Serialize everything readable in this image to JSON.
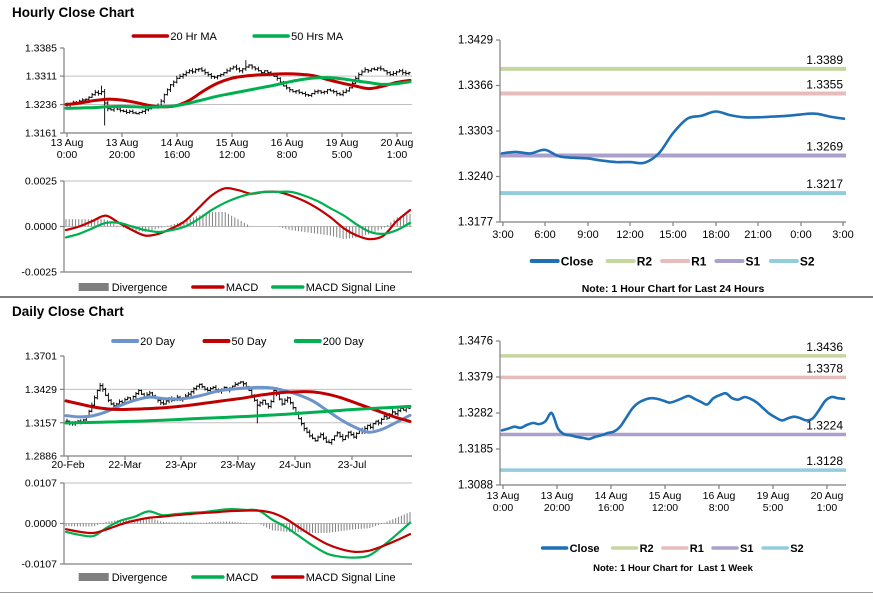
{
  "sections": {
    "hourly": {
      "title": "Hourly Close Chart",
      "note": "Note: 1 Hour Chart for Last 24 Hours"
    },
    "daily": {
      "title": "Daily Close Chart",
      "note": "Note: 1 Hour Chart for  Last 1 Week"
    }
  },
  "colors": {
    "ma_red": "#C00000",
    "ma_green": "#00B050",
    "ma_blue": "#6C94CB",
    "close_blue": "#1F6FB5",
    "r2": "#C5D79E",
    "r1": "#E8BCBA",
    "s1": "#ABA0CC",
    "s2": "#92CDDC",
    "divergence": "#7F7F7F",
    "grid": "#BFBFBF",
    "axis": "#808080"
  },
  "chart_data": [
    {
      "id": "hourly-candlestick",
      "type": "candlestick",
      "title": "Hourly Close Chart",
      "ylim": [
        1.3161,
        1.3385
      ],
      "yticks": [
        1.3385,
        1.3311,
        1.3236,
        1.3161
      ],
      "xticklabels": [
        [
          "13 Aug",
          "0:00"
        ],
        [
          "13 Aug",
          "20:00"
        ],
        [
          "14 Aug",
          "16:00"
        ],
        [
          "15 Aug",
          "12:00"
        ],
        [
          "16 Aug",
          "8:00"
        ],
        [
          "19 Aug",
          "5:00"
        ],
        [
          "20 Aug",
          "1:00"
        ]
      ],
      "closes": [
        1.3235,
        1.3238,
        1.3242,
        1.324,
        1.3245,
        1.3248,
        1.325,
        1.3255,
        1.3262,
        1.3268,
        1.3265,
        1.327,
        1.324,
        1.3225,
        1.3222,
        1.3228,
        1.3224,
        1.322,
        1.3218,
        1.3215,
        1.3218,
        1.3214,
        1.3212,
        1.3215,
        1.3218,
        1.3222,
        1.3225,
        1.323,
        1.3228,
        1.3232,
        1.3245,
        1.3262,
        1.3275,
        1.3288,
        1.3295,
        1.3305,
        1.331,
        1.3315,
        1.332,
        1.3325,
        1.3322,
        1.3328,
        1.333,
        1.3325,
        1.332,
        1.3315,
        1.331,
        1.3308,
        1.3312,
        1.3315,
        1.332,
        1.3325,
        1.333,
        1.3335,
        1.333,
        1.3325,
        1.333,
        1.3335,
        1.334,
        1.3335,
        1.333,
        1.3325,
        1.332,
        1.3325,
        1.332,
        1.3315,
        1.331,
        1.3305,
        1.3295,
        1.3285,
        1.328,
        1.3275,
        1.327,
        1.3272,
        1.3268,
        1.3265,
        1.3262,
        1.326,
        1.3265,
        1.327,
        1.3272,
        1.3268,
        1.327,
        1.3275,
        1.3272,
        1.327,
        1.3265,
        1.3262,
        1.3268,
        1.3272,
        1.328,
        1.3292,
        1.3305,
        1.3315,
        1.3322,
        1.3328,
        1.3325,
        1.333,
        1.3328,
        1.3332,
        1.333,
        1.3325,
        1.332,
        1.3315,
        1.3318,
        1.3322,
        1.3325,
        1.332,
        1.3318,
        1.332
      ],
      "wick": 0.0007,
      "spikes": [
        {
          "i": 12,
          "low": 1.3181
        },
        {
          "i": 11,
          "high": 1.3286
        },
        {
          "i": 57,
          "high": 1.3353
        }
      ],
      "series": [
        {
          "name": "20 Hr MA",
          "color": "#C00000",
          "values": [
            1.3236,
            1.324,
            1.3246,
            1.325,
            1.3248,
            1.3242,
            1.3234,
            1.323,
            1.3233,
            1.3248,
            1.3272,
            1.3292,
            1.3305,
            1.3311,
            1.3314,
            1.3316,
            1.3317,
            1.3316,
            1.3312,
            1.3302,
            1.3293,
            1.3285,
            1.3278,
            1.3284,
            1.3294,
            1.33
          ]
        },
        {
          "name": "50 Hrs MA",
          "color": "#00B050",
          "values": [
            1.3226,
            1.3227,
            1.3228,
            1.323,
            1.3231,
            1.323,
            1.3229,
            1.323,
            1.3233,
            1.324,
            1.3249,
            1.3258,
            1.3265,
            1.3272,
            1.3279,
            1.3286,
            1.3294,
            1.3301,
            1.3306,
            1.3307,
            1.3304,
            1.3299,
            1.3294,
            1.3289,
            1.3291,
            1.3296
          ]
        }
      ],
      "legend": [
        {
          "label": "20 Hr MA",
          "color": "#C00000"
        },
        {
          "label": "50 Hrs MA",
          "color": "#00B050"
        }
      ]
    },
    {
      "id": "hourly-macd",
      "type": "macd",
      "ylim": [
        -0.0025,
        0.0025
      ],
      "yticks": [
        0.0025,
        0.0,
        -0.0025
      ],
      "series": [
        {
          "name": "MACD",
          "color": "#C00000",
          "values": [
            -0.0002,
            0.0,
            0.0003,
            0.0006,
            0.0002,
            -0.0002,
            -0.0005,
            -0.0004,
            -0.0001,
            0.0003,
            0.001,
            0.0017,
            0.0021,
            0.002,
            0.0018,
            0.0019,
            0.0019,
            0.0017,
            0.0014,
            0.001,
            0.0005,
            -0.0001,
            -0.0005,
            -0.0007,
            -0.0005,
            0.0003,
            0.0009
          ]
        },
        {
          "name": "MACD Signal Line",
          "color": "#00B050",
          "values": [
            -0.0006,
            -0.0004,
            -0.0001,
            0.0002,
            0.0002,
            0.0,
            -0.0002,
            -0.0003,
            -0.0002,
            0.0,
            0.0004,
            0.0009,
            0.0013,
            0.0016,
            0.0018,
            0.0019,
            0.0019,
            0.0019,
            0.0017,
            0.0014,
            0.001,
            0.0006,
            0.0001,
            -0.0003,
            -0.0004,
            -0.0002,
            0.0002
          ]
        }
      ],
      "divergence": {
        "color": "#808080",
        "bars": 108
      },
      "legend": [
        {
          "label": "Divergence",
          "color": "#7F7F7F",
          "shape": "box"
        },
        {
          "label": "MACD",
          "color": "#C00000"
        },
        {
          "label": "MACD Signal Line",
          "color": "#00B050"
        }
      ]
    },
    {
      "id": "hourly-close-pivots",
      "type": "line",
      "ylim": [
        1.3177,
        1.3429
      ],
      "yticks": [
        1.3429,
        1.3366,
        1.3303,
        1.324,
        1.3177
      ],
      "xticklabels": [
        "3:00",
        "6:00",
        "9:00",
        "12:00",
        "15:00",
        "18:00",
        "21:00",
        "0:00",
        "3:00"
      ],
      "series": [
        {
          "name": "Close",
          "color": "#1F6FB5",
          "values": [
            1.3272,
            1.3274,
            1.3272,
            1.3277,
            1.3268,
            1.3266,
            1.3265,
            1.3262,
            1.326,
            1.326,
            1.3259,
            1.3272,
            1.33,
            1.332,
            1.3324,
            1.333,
            1.3325,
            1.3322,
            1.3322,
            1.3323,
            1.3324,
            1.3326,
            1.3327,
            1.3323,
            1.332
          ]
        }
      ],
      "levels": [
        {
          "name": "R2",
          "label": "1.3389",
          "value": 1.3389,
          "color": "#C5D79E"
        },
        {
          "name": "R1",
          "label": "1.3355",
          "value": 1.3355,
          "color": "#E8BCBA"
        },
        {
          "name": "S1",
          "label": "1.3269",
          "value": 1.3269,
          "color": "#ABA0CC"
        },
        {
          "name": "S2",
          "label": "1.3217",
          "value": 1.3217,
          "color": "#92CDDC"
        }
      ],
      "legend": [
        {
          "label": "Close",
          "color": "#1F6FB5"
        },
        {
          "label": "R2",
          "color": "#C5D79E"
        },
        {
          "label": "R1",
          "color": "#E8BCBA"
        },
        {
          "label": "S1",
          "color": "#ABA0CC"
        },
        {
          "label": "S2",
          "color": "#92CDDC"
        }
      ],
      "note": "Note: 1 Hour Chart for Last 24 Hours"
    },
    {
      "id": "daily-candlestick",
      "type": "candlestick",
      "title": "Daily Close Chart",
      "ylim": [
        1.2886,
        1.3701
      ],
      "yticks": [
        1.3701,
        1.3429,
        1.3157,
        1.2886
      ],
      "xticklabels": [
        "20-Feb",
        "22-Mar",
        "23-Apr",
        "23-May",
        "24-Jun",
        "23-Jul"
      ],
      "closes": [
        1.317,
        1.3155,
        1.3148,
        1.3162,
        1.317,
        1.3165,
        1.318,
        1.321,
        1.325,
        1.33,
        1.336,
        1.342,
        1.346,
        1.343,
        1.338,
        1.334,
        1.331,
        1.3295,
        1.331,
        1.333,
        1.332,
        1.3345,
        1.336,
        1.334,
        1.337,
        1.3395,
        1.342,
        1.339,
        1.3365,
        1.3385,
        1.34,
        1.3375,
        1.3355,
        1.334,
        1.332,
        1.331,
        1.3335,
        1.3355,
        1.334,
        1.335,
        1.3365,
        1.3345,
        1.336,
        1.3375,
        1.339,
        1.341,
        1.3435,
        1.3455,
        1.347,
        1.345,
        1.343,
        1.342,
        1.3435,
        1.3445,
        1.3425,
        1.3415,
        1.343,
        1.3445,
        1.3425,
        1.344,
        1.3455,
        1.347,
        1.348,
        1.349,
        1.3475,
        1.345,
        1.342,
        1.338,
        1.334,
        1.33,
        1.332,
        1.334,
        1.331,
        1.329,
        1.333,
        1.342,
        1.339,
        1.335,
        1.331,
        1.334,
        1.336,
        1.332,
        1.328,
        1.324,
        1.319,
        1.315,
        1.311,
        1.308,
        1.305,
        1.303,
        1.301,
        1.304,
        1.306,
        1.303,
        1.3,
        1.2995,
        1.302,
        1.305,
        1.3075,
        1.3045,
        1.302,
        1.305,
        1.308,
        1.306,
        1.304,
        1.307,
        1.31,
        1.3085,
        1.311,
        1.3135,
        1.312,
        1.315,
        1.317,
        1.3155,
        1.3185,
        1.321,
        1.3195,
        1.3225,
        1.3245,
        1.323,
        1.3255,
        1.3275,
        1.326,
        1.328,
        1.3275
      ],
      "wick": 0.0022,
      "spikes": [
        {
          "i": 12,
          "high": 1.3472
        },
        {
          "i": 63,
          "high": 1.3497
        },
        {
          "i": 69,
          "low": 1.3152
        },
        {
          "i": 26,
          "high": 1.343
        }
      ],
      "series": [
        {
          "name": "20 Day",
          "color": "#6C94CB",
          "values": [
            1.3215,
            1.3205,
            1.3215,
            1.325,
            1.33,
            1.334,
            1.3365,
            1.3355,
            1.335,
            1.336,
            1.3385,
            1.3415,
            1.343,
            1.344,
            1.3445,
            1.344,
            1.3415,
            1.338,
            1.333,
            1.3255,
            1.318,
            1.312,
            1.308,
            1.3105,
            1.316,
            1.3218
          ]
        },
        {
          "name": "50 Day",
          "color": "#C00000",
          "values": [
            1.3335,
            1.331,
            1.3285,
            1.327,
            1.3265,
            1.3268,
            1.3272,
            1.3278,
            1.3288,
            1.33,
            1.3315,
            1.333,
            1.3345,
            1.336,
            1.338,
            1.3395,
            1.3405,
            1.341,
            1.3408,
            1.339,
            1.336,
            1.332,
            1.328,
            1.324,
            1.32,
            1.3168
          ]
        },
        {
          "name": "200 Day",
          "color": "#00B050",
          "values": [
            1.3155,
            1.3158,
            1.316,
            1.3163,
            1.3166,
            1.317,
            1.3174,
            1.3178,
            1.3183,
            1.3188,
            1.3193,
            1.3198,
            1.3203,
            1.3208,
            1.3214,
            1.322,
            1.3227,
            1.3234,
            1.3242,
            1.325,
            1.3258,
            1.3266,
            1.3272,
            1.3278,
            1.3284,
            1.329
          ]
        }
      ],
      "legend": [
        {
          "label": "20 Day",
          "color": "#6C94CB"
        },
        {
          "label": "50 Day",
          "color": "#C00000"
        },
        {
          "label": "200 Day",
          "color": "#00B050"
        }
      ]
    },
    {
      "id": "daily-macd",
      "type": "macd",
      "ylim": [
        -0.0107,
        0.0107
      ],
      "yticks": [
        0.0107,
        0.0,
        -0.0107
      ],
      "series": [
        {
          "name": "MACD",
          "color": "#00B050",
          "values": [
            -0.0022,
            -0.003,
            -0.0033,
            -0.001,
            0.0008,
            0.0018,
            0.0032,
            0.0022,
            0.0025,
            0.0028,
            0.003,
            0.0035,
            0.0038,
            0.0036,
            0.0034,
            0.001,
            -0.001,
            -0.0035,
            -0.006,
            -0.008,
            -0.0088,
            -0.009,
            -0.0085,
            -0.006,
            -0.003,
            0.0002
          ]
        },
        {
          "name": "MACD Signal Line",
          "color": "#C00000",
          "values": [
            -0.0015,
            -0.0022,
            -0.0025,
            -0.0015,
            -0.0002,
            0.0008,
            0.0015,
            0.0018,
            0.0022,
            0.0025,
            0.0028,
            0.003,
            0.0033,
            0.0034,
            0.0034,
            0.0028,
            0.0012,
            -0.0012,
            -0.0035,
            -0.0055,
            -0.0068,
            -0.0075,
            -0.0072,
            -0.006,
            -0.0045,
            -0.0028
          ]
        }
      ],
      "divergence": {
        "color": "#808080",
        "bars": 120
      },
      "legend": [
        {
          "label": "Divergence",
          "color": "#7F7F7F",
          "shape": "box"
        },
        {
          "label": "MACD",
          "color": "#00B050"
        },
        {
          "label": "MACD Signal Line",
          "color": "#C00000"
        }
      ]
    },
    {
      "id": "weekly-close-pivots",
      "type": "line",
      "ylim": [
        1.3088,
        1.3476
      ],
      "yticks": [
        1.3476,
        1.3379,
        1.3282,
        1.3185,
        1.3088
      ],
      "xticklabels": [
        [
          "13 Aug",
          "0:00"
        ],
        [
          "13 Aug",
          "20:00"
        ],
        [
          "14 Aug",
          "16:00"
        ],
        [
          "15 Aug",
          "12:00"
        ],
        [
          "16 Aug",
          "8:00"
        ],
        [
          "19 Aug",
          "5:00"
        ],
        [
          "20 Aug",
          "1:00"
        ]
      ],
      "series": [
        {
          "name": "Close",
          "color": "#1F6FB5",
          "values": [
            1.3235,
            1.324,
            1.3245,
            1.3242,
            1.325,
            1.3255,
            1.3252,
            1.326,
            1.3282,
            1.324,
            1.3225,
            1.3222,
            1.3218,
            1.3215,
            1.3212,
            1.3218,
            1.3222,
            1.3228,
            1.3232,
            1.3245,
            1.327,
            1.3295,
            1.331,
            1.3318,
            1.3322,
            1.332,
            1.3315,
            1.331,
            1.3315,
            1.3322,
            1.3328,
            1.332,
            1.3312,
            1.3305,
            1.3322,
            1.333,
            1.3335,
            1.3322,
            1.3318,
            1.3325,
            1.332,
            1.331,
            1.3295,
            1.328,
            1.327,
            1.3262,
            1.3268,
            1.3272,
            1.3268,
            1.3262,
            1.3268,
            1.329,
            1.3315,
            1.3325,
            1.3322,
            1.332
          ]
        }
      ],
      "levels": [
        {
          "name": "R2",
          "label": "1.3436",
          "value": 1.3436,
          "color": "#C5D79E"
        },
        {
          "name": "R1",
          "label": "1.3378",
          "value": 1.3378,
          "color": "#E8BCBA"
        },
        {
          "name": "S1",
          "label": "1.3224",
          "value": 1.3224,
          "color": "#ABA0CC"
        },
        {
          "name": "S2",
          "label": "1.3128",
          "value": 1.3128,
          "color": "#92CDDC"
        }
      ],
      "legend": [
        {
          "label": "Close",
          "color": "#1F6FB5"
        },
        {
          "label": "R2",
          "color": "#C5D79E"
        },
        {
          "label": "R1",
          "color": "#E8BCBA"
        },
        {
          "label": "S1",
          "color": "#ABA0CC"
        },
        {
          "label": "S2",
          "color": "#92CDDC"
        }
      ],
      "note": "Note: 1 Hour Chart for  Last 1 Week"
    }
  ]
}
